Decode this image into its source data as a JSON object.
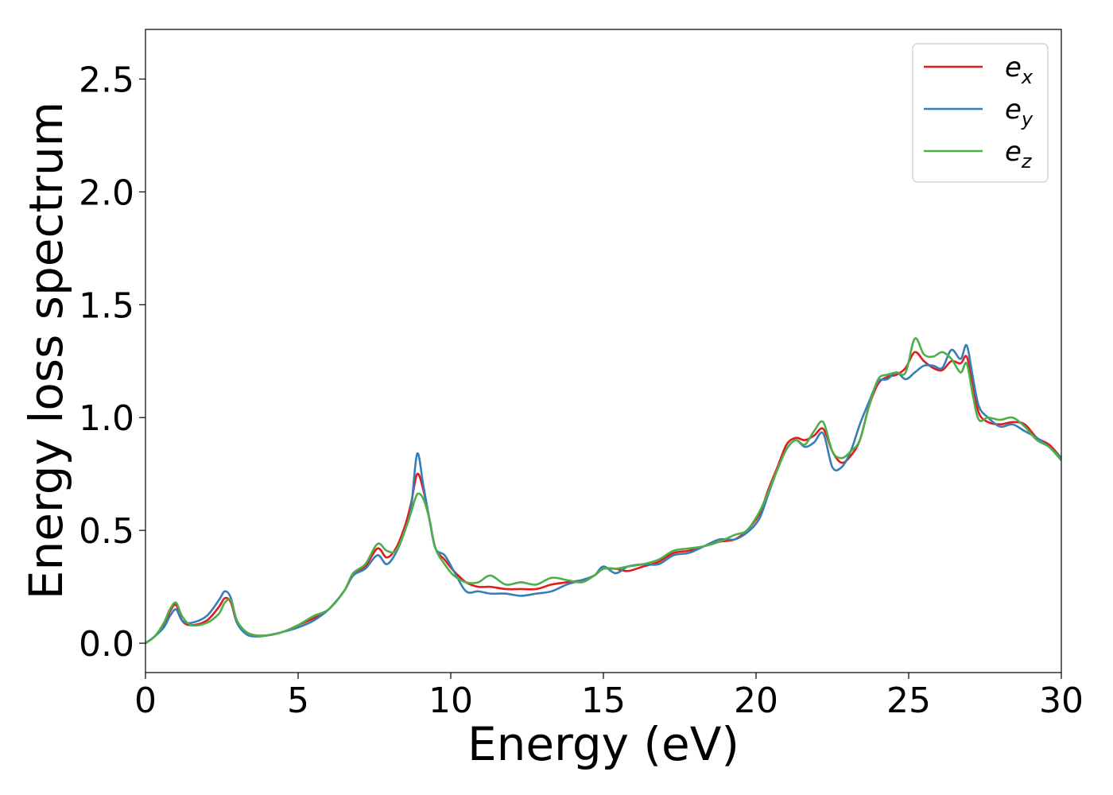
{
  "chart_data": {
    "type": "line",
    "title": "",
    "xlabel": "Energy (eV)",
    "ylabel": "Energy loss spectrum",
    "xlim": [
      0,
      30
    ],
    "ylim": [
      -0.13,
      2.72
    ],
    "xticks": [
      0,
      5,
      10,
      15,
      20,
      25,
      30
    ],
    "xtick_labels": [
      "0",
      "5",
      "10",
      "15",
      "20",
      "25",
      "30"
    ],
    "yticks": [
      0.0,
      0.5,
      1.0,
      1.5,
      2.0,
      2.5
    ],
    "ytick_labels": [
      "0.0",
      "0.5",
      "1.0",
      "1.5",
      "2.0",
      "2.5"
    ],
    "grid": false,
    "legend_position": "top-right",
    "series": [
      {
        "name": "e_x",
        "label_base": "e",
        "label_sub": "x",
        "color": "#e41a1c",
        "x": [
          0,
          0.3,
          0.6,
          0.8,
          1.0,
          1.2,
          1.5,
          2.0,
          2.4,
          2.6,
          2.8,
          3.0,
          3.3,
          3.6,
          4.0,
          4.5,
          5.0,
          5.5,
          6.0,
          6.5,
          6.8,
          7.2,
          7.6,
          7.9,
          8.2,
          8.5,
          8.7,
          8.9,
          9.1,
          9.3,
          9.5,
          9.8,
          10.1,
          10.5,
          10.9,
          11.3,
          11.8,
          12.3,
          12.8,
          13.3,
          13.8,
          14.3,
          14.7,
          15.0,
          15.4,
          15.8,
          16.3,
          16.8,
          17.3,
          17.8,
          18.3,
          18.8,
          19.3,
          19.7,
          20.1,
          20.4,
          20.7,
          21.0,
          21.3,
          21.6,
          21.9,
          22.2,
          22.5,
          22.8,
          23.1,
          23.4,
          23.7,
          24.0,
          24.3,
          24.6,
          24.9,
          25.2,
          25.5,
          25.8,
          26.1,
          26.4,
          26.7,
          26.9,
          27.1,
          27.3,
          27.6,
          28.0,
          28.4,
          28.8,
          29.2,
          29.6,
          30.0
        ],
        "y": [
          0.0,
          0.03,
          0.08,
          0.14,
          0.17,
          0.1,
          0.08,
          0.1,
          0.16,
          0.2,
          0.18,
          0.09,
          0.05,
          0.035,
          0.035,
          0.05,
          0.08,
          0.11,
          0.15,
          0.23,
          0.3,
          0.34,
          0.42,
          0.38,
          0.42,
          0.52,
          0.62,
          0.75,
          0.68,
          0.55,
          0.42,
          0.37,
          0.32,
          0.27,
          0.25,
          0.25,
          0.24,
          0.24,
          0.24,
          0.26,
          0.27,
          0.28,
          0.3,
          0.33,
          0.33,
          0.32,
          0.34,
          0.36,
          0.4,
          0.41,
          0.43,
          0.45,
          0.46,
          0.5,
          0.57,
          0.68,
          0.78,
          0.88,
          0.91,
          0.9,
          0.92,
          0.95,
          0.85,
          0.8,
          0.83,
          0.9,
          1.05,
          1.15,
          1.18,
          1.19,
          1.22,
          1.29,
          1.25,
          1.22,
          1.21,
          1.25,
          1.24,
          1.27,
          1.15,
          1.02,
          0.98,
          0.97,
          0.98,
          0.97,
          0.91,
          0.88,
          0.82
        ]
      },
      {
        "name": "e_y",
        "label_base": "e",
        "label_sub": "y",
        "color": "#377eb8",
        "x": [
          0,
          0.3,
          0.6,
          0.8,
          1.0,
          1.2,
          1.5,
          2.0,
          2.4,
          2.6,
          2.8,
          3.0,
          3.3,
          3.6,
          4.0,
          4.5,
          5.0,
          5.5,
          6.0,
          6.5,
          6.8,
          7.2,
          7.6,
          7.9,
          8.2,
          8.5,
          8.7,
          8.9,
          9.1,
          9.3,
          9.5,
          9.8,
          10.1,
          10.5,
          10.9,
          11.3,
          11.8,
          12.3,
          12.8,
          13.3,
          13.8,
          14.3,
          14.7,
          15.0,
          15.4,
          15.8,
          16.3,
          16.8,
          17.3,
          17.8,
          18.3,
          18.8,
          19.3,
          19.7,
          20.1,
          20.4,
          20.7,
          21.0,
          21.3,
          21.6,
          21.9,
          22.2,
          22.5,
          22.8,
          23.1,
          23.4,
          23.7,
          24.0,
          24.3,
          24.6,
          24.9,
          25.2,
          25.5,
          25.8,
          26.1,
          26.4,
          26.7,
          26.9,
          27.1,
          27.3,
          27.6,
          28.0,
          28.4,
          28.8,
          29.2,
          29.6,
          30.0
        ],
        "y": [
          0.0,
          0.03,
          0.07,
          0.12,
          0.15,
          0.1,
          0.09,
          0.12,
          0.19,
          0.23,
          0.2,
          0.09,
          0.04,
          0.03,
          0.035,
          0.05,
          0.07,
          0.1,
          0.15,
          0.23,
          0.3,
          0.33,
          0.39,
          0.35,
          0.4,
          0.5,
          0.6,
          0.84,
          0.7,
          0.55,
          0.42,
          0.39,
          0.32,
          0.23,
          0.23,
          0.22,
          0.22,
          0.21,
          0.22,
          0.23,
          0.26,
          0.28,
          0.3,
          0.34,
          0.31,
          0.34,
          0.35,
          0.35,
          0.39,
          0.4,
          0.43,
          0.46,
          0.46,
          0.49,
          0.55,
          0.66,
          0.77,
          0.86,
          0.9,
          0.87,
          0.89,
          0.93,
          0.78,
          0.78,
          0.85,
          0.97,
          1.07,
          1.16,
          1.17,
          1.2,
          1.17,
          1.2,
          1.23,
          1.23,
          1.22,
          1.3,
          1.26,
          1.32,
          1.18,
          1.05,
          1.0,
          0.96,
          0.97,
          0.94,
          0.91,
          0.87,
          0.82
        ]
      },
      {
        "name": "e_z",
        "label_base": "e",
        "label_sub": "z",
        "color": "#4daf4a",
        "x": [
          0,
          0.3,
          0.6,
          0.8,
          1.0,
          1.2,
          1.5,
          2.0,
          2.4,
          2.6,
          2.8,
          3.0,
          3.3,
          3.6,
          4.0,
          4.5,
          5.0,
          5.5,
          6.0,
          6.5,
          6.8,
          7.2,
          7.6,
          7.9,
          8.2,
          8.5,
          8.7,
          8.9,
          9.1,
          9.3,
          9.5,
          9.8,
          10.1,
          10.5,
          10.9,
          11.3,
          11.8,
          12.3,
          12.8,
          13.3,
          13.8,
          14.3,
          14.7,
          15.0,
          15.4,
          15.8,
          16.3,
          16.8,
          17.3,
          17.8,
          18.3,
          18.8,
          19.3,
          19.7,
          20.1,
          20.4,
          20.7,
          21.0,
          21.3,
          21.6,
          21.9,
          22.2,
          22.5,
          22.8,
          23.1,
          23.4,
          23.7,
          24.0,
          24.3,
          24.6,
          24.9,
          25.2,
          25.5,
          25.8,
          26.1,
          26.4,
          26.7,
          26.9,
          27.1,
          27.3,
          27.6,
          28.0,
          28.4,
          28.8,
          29.2,
          29.6,
          30.0
        ],
        "y": [
          0.0,
          0.03,
          0.09,
          0.15,
          0.18,
          0.12,
          0.08,
          0.09,
          0.13,
          0.18,
          0.19,
          0.1,
          0.05,
          0.035,
          0.035,
          0.05,
          0.08,
          0.12,
          0.15,
          0.23,
          0.31,
          0.35,
          0.44,
          0.41,
          0.41,
          0.5,
          0.58,
          0.66,
          0.64,
          0.55,
          0.42,
          0.35,
          0.3,
          0.27,
          0.27,
          0.3,
          0.26,
          0.27,
          0.26,
          0.29,
          0.28,
          0.27,
          0.3,
          0.33,
          0.33,
          0.34,
          0.35,
          0.37,
          0.41,
          0.42,
          0.43,
          0.45,
          0.48,
          0.5,
          0.58,
          0.67,
          0.77,
          0.86,
          0.9,
          0.88,
          0.94,
          0.98,
          0.85,
          0.82,
          0.85,
          0.9,
          1.05,
          1.17,
          1.19,
          1.2,
          1.2,
          1.35,
          1.28,
          1.27,
          1.29,
          1.26,
          1.2,
          1.24,
          1.1,
          0.99,
          1.0,
          0.99,
          1.0,
          0.96,
          0.9,
          0.87,
          0.81
        ]
      }
    ]
  }
}
